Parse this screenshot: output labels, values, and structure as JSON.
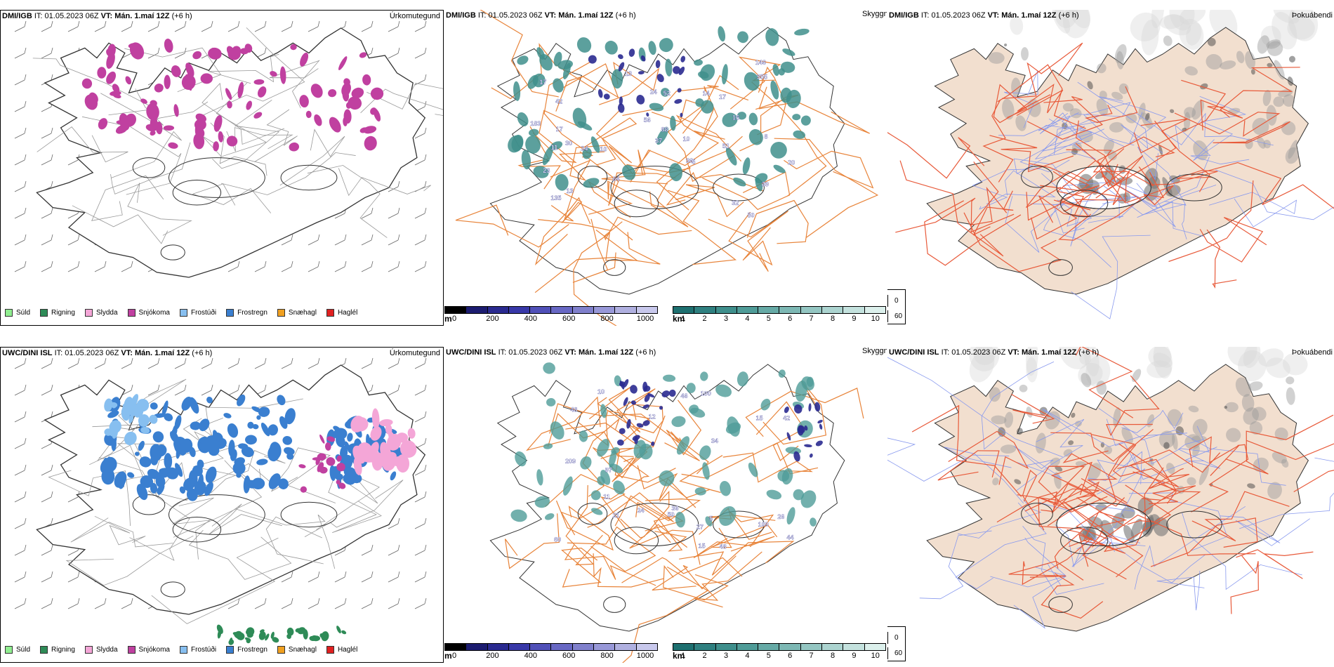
{
  "rows": [
    {
      "model": "DMI/IGB",
      "it_label": "IT:",
      "it_value": "01.05.2023 06Z",
      "vt_label": "VT:",
      "vt_value": "Mán. 1.maí 12Z",
      "lead": "(+6 h)",
      "precip_label": "Úrkomutegund",
      "cloud_label": "Skyggni",
      "fog_label": "Þokuábendi"
    },
    {
      "model": "UWC/DINI ISL",
      "it_label": "IT:",
      "it_value": "01.05.2023 06Z",
      "vt_label": "VT:",
      "vt_value": "Mán. 1.maí 12Z",
      "lead": "(+6 h)",
      "precip_label": "Úrkomutegund",
      "cloud_label": "Skyggni",
      "fog_label": "Þokuábendi"
    }
  ],
  "precip_legend": [
    {
      "label": "Súld",
      "color": "#90ee90"
    },
    {
      "label": "Rigning",
      "color": "#2e8b57"
    },
    {
      "label": "Slydda",
      "color": "#f4a6d7"
    },
    {
      "label": "Snjókoma",
      "color": "#c040a0"
    },
    {
      "label": "Frostúði",
      "color": "#87bff0"
    },
    {
      "label": "Frostregn",
      "color": "#3a7fd0"
    },
    {
      "label": "Snæhagl",
      "color": "#f0a020"
    },
    {
      "label": "Haglél",
      "color": "#e02020"
    }
  ],
  "cloudbase_colorbar": {
    "unit": "m",
    "ticks": [
      "0",
      "200",
      "400",
      "600",
      "800",
      "1000"
    ],
    "colors": [
      "#000000",
      "#1c1c70",
      "#2a2a90",
      "#3838a8",
      "#5050b8",
      "#6868c4",
      "#8080cc",
      "#9898d8",
      "#b0b0e0",
      "#c8c8ec"
    ]
  },
  "visibility_colorbar": {
    "unit": "km",
    "ticks": [
      "1",
      "2",
      "3",
      "4",
      "5",
      "6",
      "7",
      "8",
      "9",
      "10"
    ],
    "colors": [
      "#1e7070",
      "#2f8080",
      "#3f8f8c",
      "#4f9c98",
      "#66aaa6",
      "#7db8b4",
      "#94c6c2",
      "#acd4d0",
      "#c4e2de",
      "#dcf0ec"
    ]
  },
  "fog_legend": [
    {
      "label": "0",
      "color": "#000000"
    },
    {
      "label": "60",
      "color": "#ffffff"
    }
  ],
  "cloud_numbers": [
    [
      "50",
      "30",
      "36",
      "17",
      "39",
      "42",
      "13",
      "10",
      "17",
      "24",
      "14",
      "32",
      "64",
      "13",
      "10",
      "23",
      "51",
      "88",
      "183",
      "135",
      "146",
      "52",
      "16",
      "20",
      "8",
      "17",
      "24",
      "37",
      "56",
      "355",
      "5",
      "11"
    ],
    [
      "109",
      "26",
      "36",
      "46",
      "5",
      "34",
      "48",
      "44",
      "48",
      "27",
      "209",
      "97",
      "100",
      "50",
      "24",
      "60",
      "12",
      "15",
      "21",
      "10",
      "42",
      "15",
      "11"
    ]
  ]
}
